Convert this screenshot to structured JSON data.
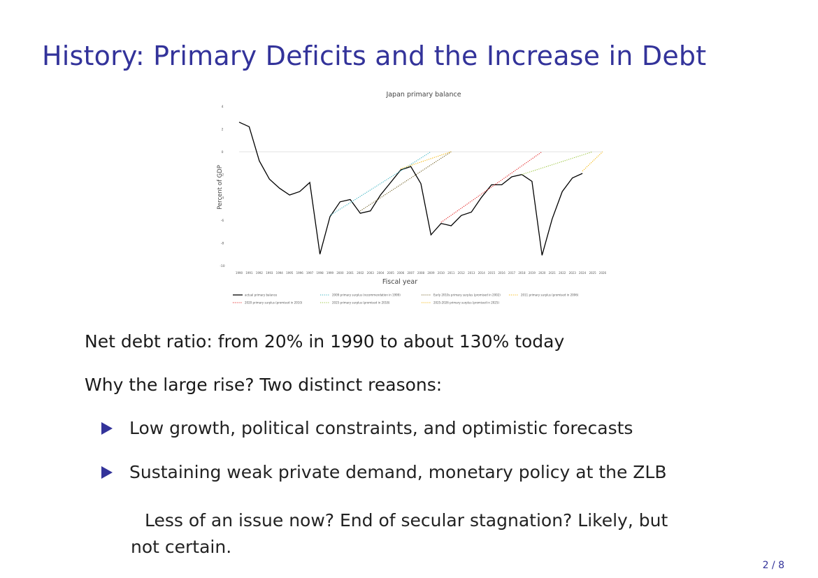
{
  "slide": {
    "title": "History: Primary Deficits and the Increase in Debt",
    "page_number": "2 / 8",
    "paragraph1": "Net debt ratio: from 20% in 1990 to about 130% today",
    "paragraph2": "Why the large rise? Two distinct reasons:",
    "bullets": [
      "Low growth, political constraints, and optimistic forecasts",
      "Sustaining weak private demand, monetary policy at the ZLB"
    ],
    "note_line1": "Less of an issue now? End of secular stagnation? Likely, but",
    "note_line2": "not certain.",
    "colors": {
      "title": "#33339a",
      "bullet": "#33339a"
    }
  },
  "chart_data": {
    "type": "line",
    "title": "Japan primary balance",
    "xlabel": "Fiscal year",
    "ylabel": "Percent of GDP",
    "xlim": [
      1990,
      2026
    ],
    "ylim": [
      -10,
      4
    ],
    "yticks": [
      4,
      2,
      0,
      -2,
      -4,
      -6,
      -8,
      -10
    ],
    "xticks": [
      1990,
      1991,
      1992,
      1993,
      1994,
      1995,
      1996,
      1997,
      1998,
      1999,
      2000,
      2001,
      2002,
      2003,
      2004,
      2005,
      2006,
      2007,
      2008,
      2009,
      2010,
      2011,
      2012,
      2013,
      2014,
      2015,
      2016,
      2017,
      2018,
      2019,
      2020,
      2021,
      2022,
      2023,
      2024,
      2025,
      2026
    ],
    "grid": "zero line only",
    "legend_position": "bottom",
    "series": [
      {
        "name": "actual primary balance",
        "color": "#000000",
        "style": "solid",
        "x": [
          1990,
          1991,
          1992,
          1993,
          1994,
          1995,
          1996,
          1997,
          1998,
          1999,
          2000,
          2001,
          2002,
          2003,
          2004,
          2005,
          2006,
          2007,
          2008,
          2009,
          2010,
          2011,
          2012,
          2013,
          2014,
          2015,
          2016,
          2017,
          2018,
          2019,
          2020,
          2021,
          2022,
          2023,
          2024
        ],
        "y": [
          2.6,
          2.2,
          -0.8,
          -2.4,
          -3.2,
          -3.8,
          -3.5,
          -2.7,
          -9.0,
          -5.7,
          -4.4,
          -4.2,
          -5.4,
          -5.2,
          -3.8,
          -2.7,
          -1.6,
          -1.3,
          -2.8,
          -7.3,
          -6.3,
          -6.5,
          -5.6,
          -5.3,
          -4.0,
          -2.9,
          -2.9,
          -2.2,
          -2.0,
          -2.6,
          -9.1,
          -5.9,
          -3.5,
          -2.3,
          -1.9
        ]
      },
      {
        "name": "2009 primary surplus (recommendation in 1999)",
        "color": "#34b1c0",
        "style": "dotted",
        "x": [
          1999,
          2009
        ],
        "y": [
          -5.6,
          0.0
        ]
      },
      {
        "name": "Early 2010s primary surplus (promised in 2002)",
        "color": "#6b5a1e",
        "style": "dotted",
        "x": [
          2002,
          2011
        ],
        "y": [
          -5.2,
          0.0
        ]
      },
      {
        "name": "2011 primary surplus (promised in 2006)",
        "color": "#f4b400",
        "style": "dotted",
        "x": [
          2006,
          2011
        ],
        "y": [
          -1.5,
          0.0
        ]
      },
      {
        "name": "2020 primary surplus (promised in 2010)",
        "color": "#e21b1b",
        "style": "dotted",
        "x": [
          2010,
          2020
        ],
        "y": [
          -6.2,
          0.0
        ]
      },
      {
        "name": "2025 primary surplus (promised in 2018)",
        "color": "#9ac43c",
        "style": "dotted",
        "x": [
          2018,
          2025
        ],
        "y": [
          -2.0,
          0.0
        ]
      },
      {
        "name": "2025-2026 primary surplus (promised in 2025)",
        "color": "#f4b400",
        "style": "dotted",
        "x": [
          2024,
          2026
        ],
        "y": [
          -1.7,
          0.0
        ]
      }
    ]
  }
}
